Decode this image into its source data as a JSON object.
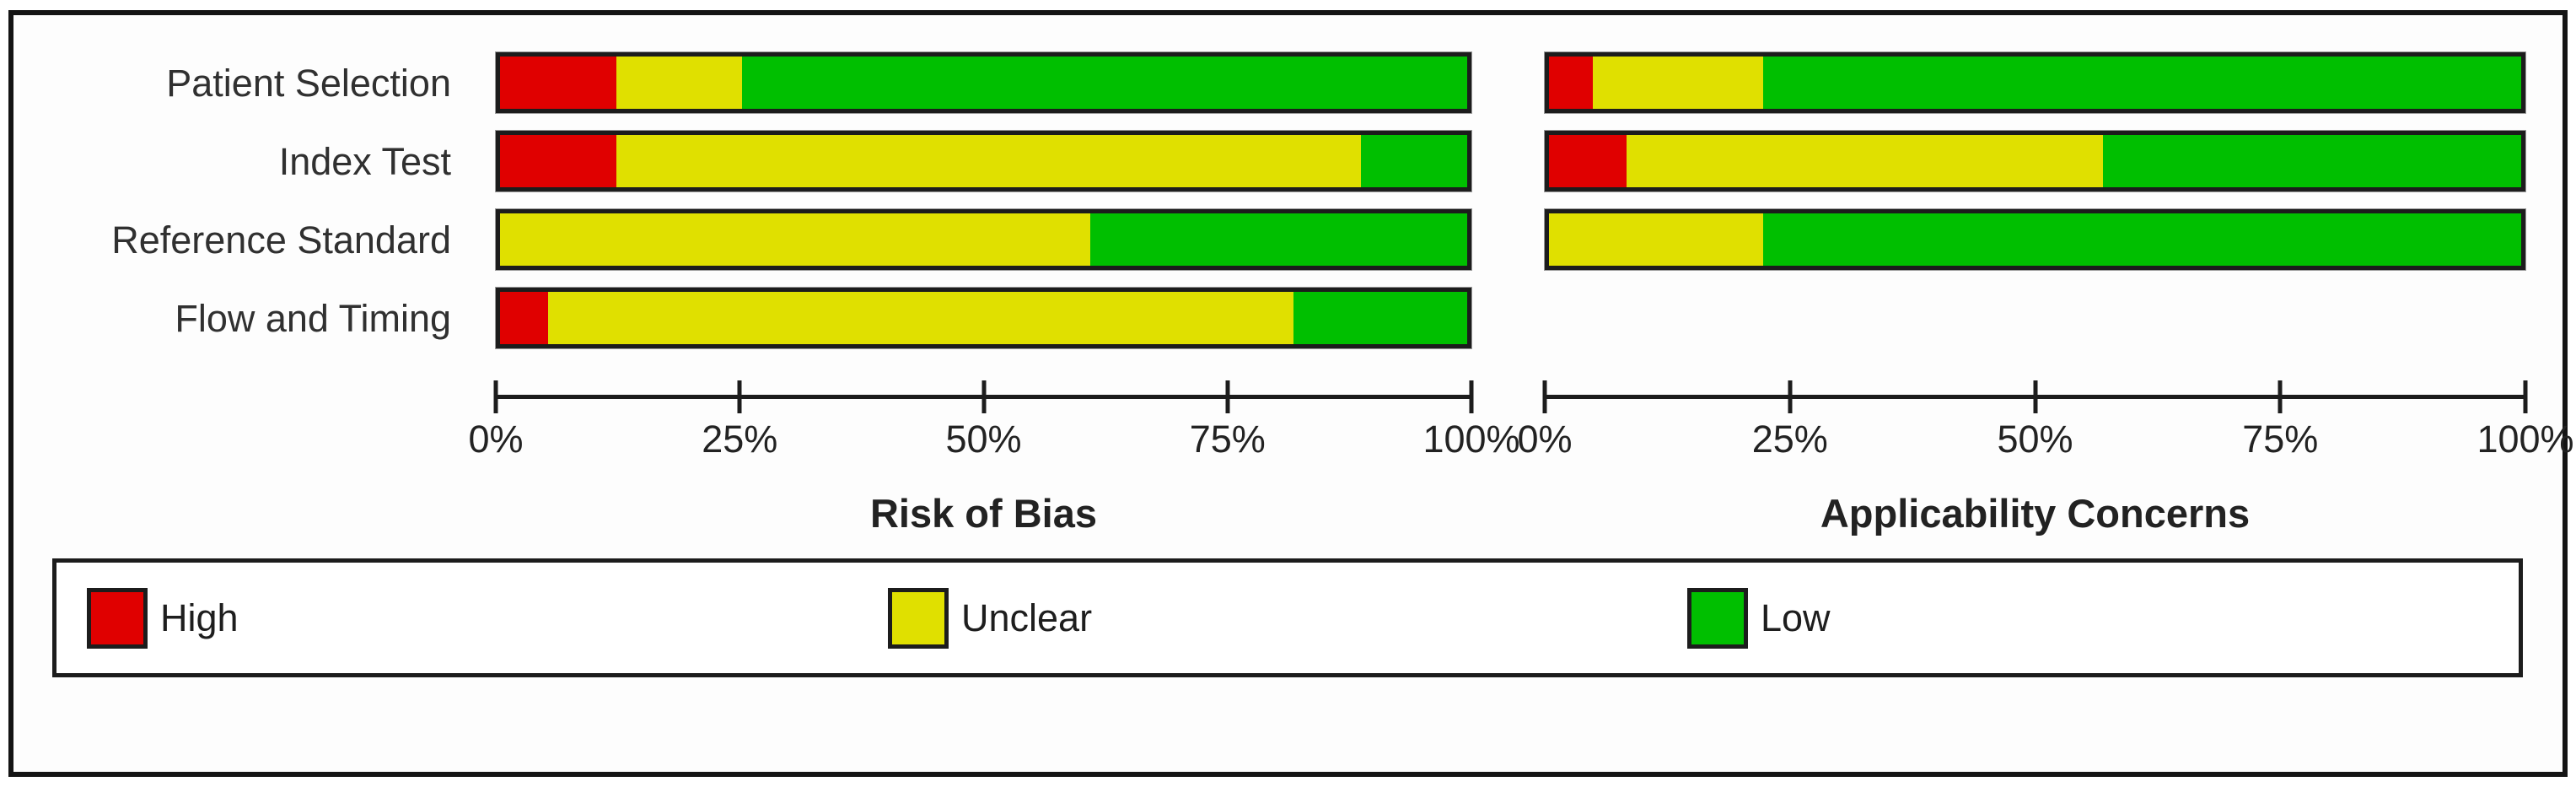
{
  "figure": {
    "kind": "QUADAS-2 methodological quality summary graph",
    "row_labels": [
      "Patient Selection",
      "Index Test",
      "Reference Standard",
      "Flow and Timing"
    ]
  },
  "colors": {
    "high": "#e00000",
    "unclear": "#e0e000",
    "low": "#00bf00",
    "border": "#1c1c1c"
  },
  "legend": {
    "items": [
      {
        "label": "High",
        "color": "#e00000"
      },
      {
        "label": "Unclear",
        "color": "#e0e000"
      },
      {
        "label": "Low",
        "color": "#00bf00"
      }
    ]
  },
  "chart_data": [
    {
      "type": "bar",
      "subtype": "horizontal-stacked-percentage",
      "title": "Risk of Bias",
      "categories": [
        "Patient Selection",
        "Index Test",
        "Reference Standard",
        "Flow and Timing"
      ],
      "series": [
        {
          "name": "High",
          "color": "#e00000",
          "values": [
            12,
            12,
            0,
            5
          ]
        },
        {
          "name": "Unclear",
          "color": "#e0e000",
          "values": [
            13,
            77,
            61,
            77
          ]
        },
        {
          "name": "Low",
          "color": "#00bf00",
          "values": [
            75,
            11,
            39,
            18
          ]
        }
      ],
      "x_ticks": [
        "0%",
        "25%",
        "50%",
        "75%",
        "100%"
      ],
      "xlim": [
        0,
        100
      ],
      "grid": false,
      "legend_position": "bottom"
    },
    {
      "type": "bar",
      "subtype": "horizontal-stacked-percentage",
      "title": "Applicability Concerns",
      "categories": [
        "Patient Selection",
        "Index Test",
        "Reference Standard"
      ],
      "series": [
        {
          "name": "High",
          "color": "#e00000",
          "values": [
            4.5,
            8,
            0
          ]
        },
        {
          "name": "Unclear",
          "color": "#e0e000",
          "values": [
            17.5,
            49,
            22
          ]
        },
        {
          "name": "Low",
          "color": "#00bf00",
          "values": [
            78,
            43,
            78
          ]
        }
      ],
      "x_ticks": [
        "0%",
        "25%",
        "50%",
        "75%",
        "100%"
      ],
      "xlim": [
        0,
        100
      ],
      "grid": false,
      "legend_position": "bottom"
    }
  ]
}
